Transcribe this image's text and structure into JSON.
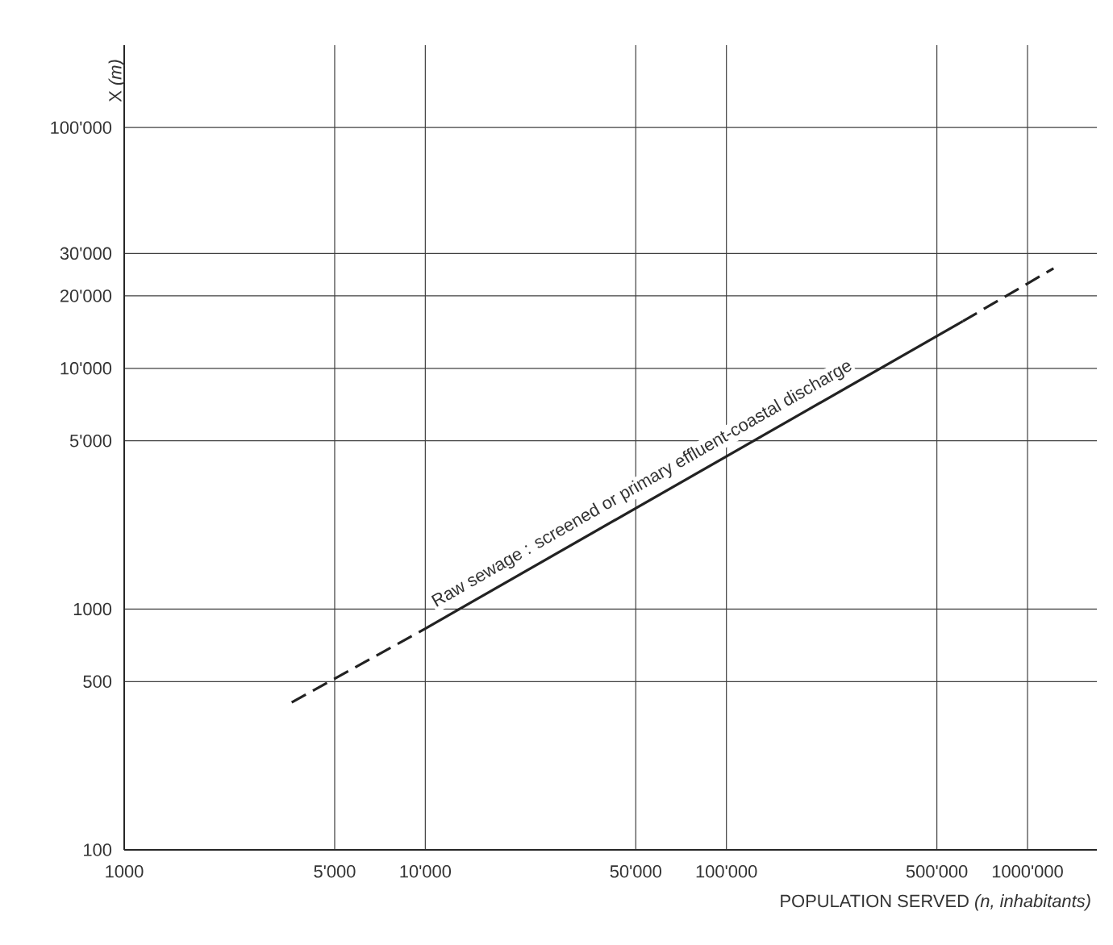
{
  "chart_data": {
    "type": "line",
    "xlabel": "POPULATION SERVED *(n, inhabitants)*",
    "ylabel": "X *(m)*",
    "log": "xy",
    "grid": true,
    "xlim": [
      1000,
      1700000
    ],
    "ylim": [
      100,
      220000
    ],
    "xticks": [
      1000,
      {
        "value": 5000,
        "label": "5'000"
      },
      {
        "value": 10000,
        "label": "10'000"
      },
      {
        "value": 50000,
        "label": "50'000"
      },
      {
        "value": 100000,
        "label": "100'000"
      },
      {
        "value": 500000,
        "label": "500'000"
      },
      {
        "value": 1000000,
        "label": "1000'000"
      }
    ],
    "yticks": [
      100,
      500,
      1000,
      {
        "value": 5000,
        "label": "5'000"
      },
      {
        "value": 10000,
        "label": "10'000"
      },
      {
        "value": 20000,
        "label": "20'000"
      },
      {
        "value": 30000,
        "label": "30'000"
      },
      {
        "value": 100000,
        "label": "100'000"
      }
    ],
    "series": [
      {
        "color": "#222222",
        "line_style": "dashed",
        "x": [
          3600,
          10000
        ],
        "values": [
          410,
          830
        ]
      },
      {
        "name": "Raw sewage : screened or primary effluent-coastal discharge",
        "color": "#222222",
        "line_style": "solid",
        "x": [
          10000,
          610000
        ],
        "values": [
          830,
          15700
        ]
      },
      {
        "color": "#222222",
        "line_style": "dashed",
        "x": [
          610000,
          1220000
        ],
        "values": [
          15700,
          26000
        ]
      }
    ]
  }
}
